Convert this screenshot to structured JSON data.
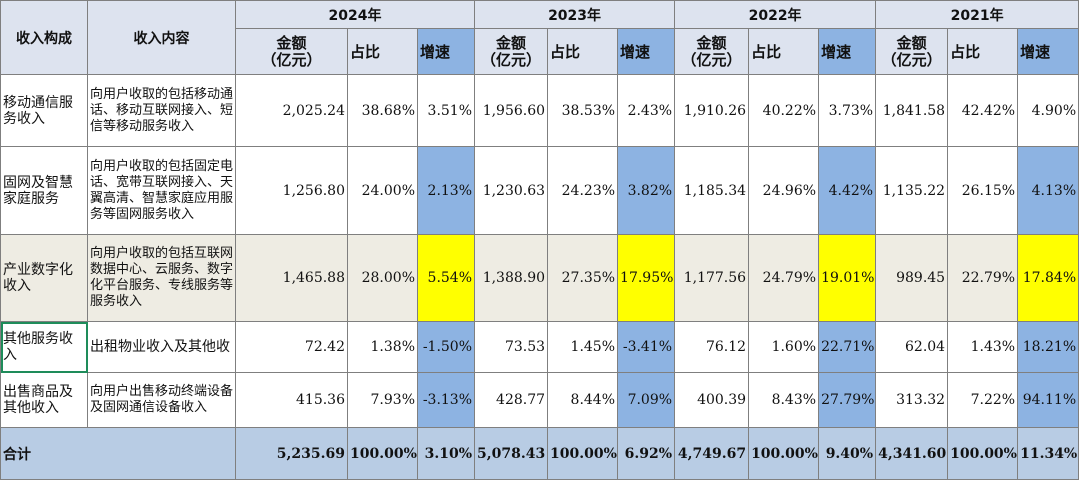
{
  "header": {
    "col_category": "收入构成",
    "col_content": "收入内容",
    "years": [
      "2024年",
      "2023年",
      "2022年",
      "2021年"
    ],
    "sub_amount": "金额\n（亿元）",
    "sub_amount_l1": "金额",
    "sub_amount_l2": "（亿元）",
    "sub_share": "占比",
    "sub_growth": "增速"
  },
  "rows": [
    {
      "category": "移动通信服务收入",
      "content": "向用户收取的包括移动通话、移动互联网接入、短信等移动服务收入",
      "cells": [
        [
          "2,025.24",
          "38.68%",
          "3.51%"
        ],
        [
          "1,956.60",
          "38.53%",
          "2.43%"
        ],
        [
          "1,910.26",
          "40.22%",
          "3.73%"
        ],
        [
          "1,841.58",
          "42.42%",
          "4.90%"
        ]
      ]
    },
    {
      "category": "固网及智慧家庭服务",
      "content": "向用户收取的包括固定电话、宽带互联网接入、天翼高清、智慧家庭应用服务等固网服务收入",
      "cells": [
        [
          "1,256.80",
          "24.00%",
          "2.13%"
        ],
        [
          "1,230.63",
          "24.23%",
          "3.82%"
        ],
        [
          "1,185.34",
          "24.96%",
          "4.42%"
        ],
        [
          "1,135.22",
          "26.15%",
          "4.13%"
        ]
      ]
    },
    {
      "category": "产业数字化收入",
      "content": "向用户收取的包括互联网数据中心、云服务、数字化平台服务、专线服务等服务收入",
      "cells": [
        [
          "1,465.88",
          "28.00%",
          "5.54%"
        ],
        [
          "1,388.90",
          "27.35%",
          "17.95%"
        ],
        [
          "1,177.56",
          "24.79%",
          "19.01%"
        ],
        [
          "989.45",
          "22.79%",
          "17.84%"
        ]
      ]
    },
    {
      "category": "其他服务收入",
      "content": "出租物业收入及其他收",
      "cells": [
        [
          "72.42",
          "1.38%",
          "-1.50%"
        ],
        [
          "73.53",
          "1.45%",
          "-3.41%"
        ],
        [
          "76.12",
          "1.60%",
          "22.71%"
        ],
        [
          "62.04",
          "1.43%",
          "18.21%"
        ]
      ]
    },
    {
      "category": "出售商品及其他收入",
      "content": "向用户出售移动终端设备及固网通信设备收入",
      "cells": [
        [
          "415.36",
          "7.93%",
          "-3.13%"
        ],
        [
          "428.77",
          "8.44%",
          "7.09%"
        ],
        [
          "400.39",
          "8.43%",
          "27.79%"
        ],
        [
          "313.32",
          "7.22%",
          "94.11%"
        ]
      ]
    }
  ],
  "total": {
    "label": "合计",
    "cells": [
      [
        "5,235.69",
        "100.00%",
        "3.10%"
      ],
      [
        "5,078.43",
        "100.00%",
        "6.92%"
      ],
      [
        "4,749.67",
        "100.00%",
        "9.40%"
      ],
      [
        "4,341.60",
        "100.00%",
        "11.34%"
      ]
    ]
  },
  "colors": {
    "header_bg": "#dde3ef",
    "growth_blue": "#8db3e2",
    "highlight_yellow": "#ffff00",
    "total_bg": "#b8cce4",
    "alt_row_bg": "#eeece3"
  }
}
